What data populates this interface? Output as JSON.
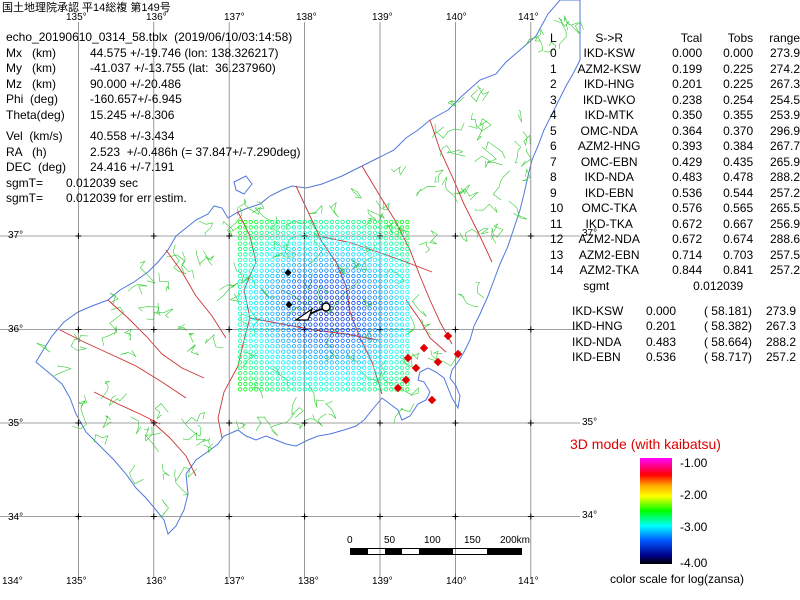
{
  "copyright": "国土地理院承認 平14総複 第149号",
  "header": {
    "filename": "echo_20190610_0314_58.tblx",
    "datetime": "(2019/06/10/03:14:58)"
  },
  "params": [
    {
      "label": "Mx   (km)",
      "value": "44.575 +/-19.746 (lon: 138.326217)"
    },
    {
      "label": "My   (km)",
      "value": "-41.037 +/-13.755 (lat:  36.237960)"
    },
    {
      "label": "Mz   (km)",
      "value": "90.000 +/-20.486"
    },
    {
      "label": "Phi  (deg)",
      "value": "-160.657+/-6.945"
    },
    {
      "label": "Theta(deg)",
      "value": "15.245 +/-8.306"
    },
    {
      "label": "Vel  (km/s)",
      "value": "40.558 +/-3.434"
    },
    {
      "label": "RA   (h)",
      "value": "2.523  +/-0.486h (= 37.847+/-7.290deg)"
    },
    {
      "label": "DEC  (deg)",
      "value": "24.416 +/-7.191"
    },
    {
      "label": "sgmT=",
      "value": "0.012039 sec"
    },
    {
      "label": "sgmT=",
      "value": "0.012039 for err estim."
    }
  ],
  "table": {
    "headers": [
      "L",
      "S->R",
      "Tcal",
      "Tobs",
      "range"
    ],
    "rows": [
      [
        "0",
        "IKD-KSW",
        "0.000",
        "0.000",
        "273.9"
      ],
      [
        "1",
        "AZM2-KSW",
        "0.199",
        "0.225",
        "274.2"
      ],
      [
        "2",
        "IKD-HNG",
        "0.201",
        "0.225",
        "267.3"
      ],
      [
        "3",
        "IKD-WKO",
        "0.238",
        "0.254",
        "254.5"
      ],
      [
        "4",
        "IKD-MTK",
        "0.350",
        "0.355",
        "253.9"
      ],
      [
        "5",
        "OMC-NDA",
        "0.364",
        "0.370",
        "296.9"
      ],
      [
        "6",
        "AZM2-HNG",
        "0.393",
        "0.384",
        "267.7"
      ],
      [
        "7",
        "OMC-EBN",
        "0.429",
        "0.435",
        "265.9"
      ],
      [
        "8",
        "IKD-NDA",
        "0.483",
        "0.478",
        "288.2"
      ],
      [
        "9",
        "IKD-EBN",
        "0.536",
        "0.544",
        "257.2"
      ],
      [
        "10",
        "OMC-TKA",
        "0.576",
        "0.565",
        "265.5"
      ],
      [
        "11",
        "IKD-TKA",
        "0.672",
        "0.667",
        "256.9"
      ],
      [
        "12",
        "AZM2-NDA",
        "0.672",
        "0.674",
        "288.6"
      ],
      [
        "13",
        "AZM2-EBN",
        "0.714",
        "0.703",
        "257.5"
      ],
      [
        "14",
        "AZM2-TKA",
        "0.844",
        "0.841",
        "257.2"
      ]
    ],
    "sgmt_label": "sgmt",
    "sgmt_value": "0.012039"
  },
  "table2": [
    [
      "IKD-KSW",
      "0.000",
      "( 58.181)",
      "273.9"
    ],
    [
      "IKD-HNG",
      "0.201",
      "( 58.382)",
      "267.3"
    ],
    [
      "IKD-NDA",
      "0.483",
      "( 58.664)",
      "288.2"
    ],
    [
      "IKD-EBN",
      "0.536",
      "( 58.717)",
      "257.2"
    ]
  ],
  "mode_label": "3D mode (with kaibatsu)",
  "colorscale": {
    "ticks": [
      "-1.00",
      "-2.00",
      "-3.00",
      "-4.00"
    ],
    "caption": "color scale for log(zansa)"
  },
  "scalebar": {
    "labels": [
      "0",
      "50",
      "100",
      "150",
      "200km"
    ]
  },
  "lon_labels": [
    "134°",
    "135°",
    "136°",
    "137°",
    "138°",
    "139°",
    "140°",
    "141°"
  ],
  "lat_labels": [
    "37°",
    "36°",
    "35°",
    "34°"
  ],
  "colors": {
    "station": "#e00000",
    "mode": "#e00000",
    "grid": "#808080",
    "coast": "#5078dc",
    "pref": "#cc3333",
    "muni": "#33cc33"
  }
}
